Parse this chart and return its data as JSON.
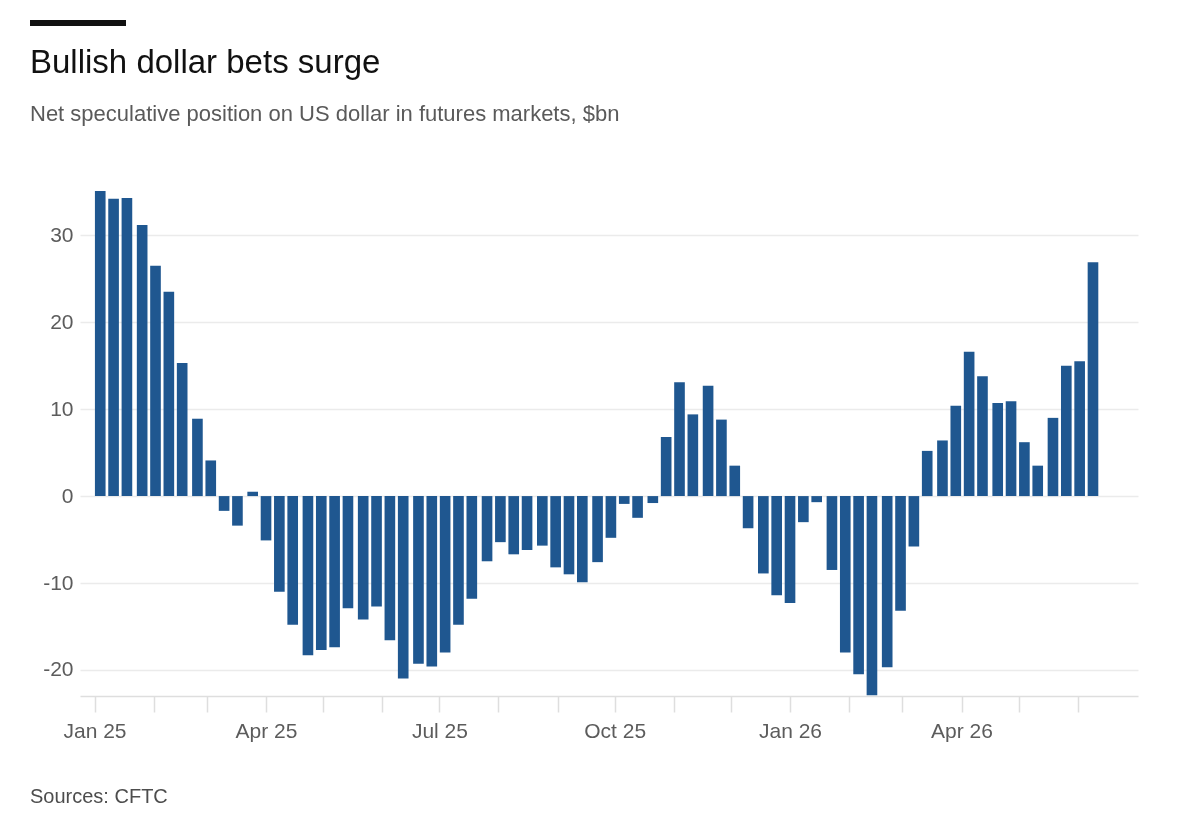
{
  "chart_data": {
    "type": "bar",
    "title": "Bullish dollar bets surge",
    "subtitle": "Net speculative position on US dollar in futures markets, $bn",
    "x": [
      "2025-01-04",
      "2025-01-11",
      "2025-01-18",
      "2025-01-26",
      "2025-02-02",
      "2025-02-09",
      "2025-02-16",
      "2025-02-24",
      "2025-03-03",
      "2025-03-10",
      "2025-03-17",
      "2025-03-25",
      "2025-04-01",
      "2025-04-08",
      "2025-04-15",
      "2025-04-23",
      "2025-04-30",
      "2025-05-07",
      "2025-05-14",
      "2025-05-22",
      "2025-05-29",
      "2025-06-05",
      "2025-06-12",
      "2025-06-20",
      "2025-06-27",
      "2025-07-04",
      "2025-07-11",
      "2025-07-18",
      "2025-07-26",
      "2025-08-02",
      "2025-08-09",
      "2025-08-16",
      "2025-08-24",
      "2025-08-31",
      "2025-09-07",
      "2025-09-14",
      "2025-09-22",
      "2025-09-29",
      "2025-10-06",
      "2025-10-13",
      "2025-10-21",
      "2025-10-28",
      "2025-11-04",
      "2025-11-11",
      "2025-11-19",
      "2025-11-26",
      "2025-12-03",
      "2025-12-10",
      "2025-12-18",
      "2025-12-25",
      "2026-01-01",
      "2026-01-08",
      "2026-01-15",
      "2026-01-23",
      "2026-01-30",
      "2026-02-06",
      "2026-02-13",
      "2026-02-21",
      "2026-02-28",
      "2026-03-07",
      "2026-03-14",
      "2026-03-22",
      "2026-03-29",
      "2026-04-05",
      "2026-04-12",
      "2026-04-20",
      "2026-04-27",
      "2026-05-04",
      "2026-05-11",
      "2026-05-19",
      "2026-05-26",
      "2026-06-02",
      "2026-06-09"
    ],
    "values": [
      35.1,
      34.2,
      34.3,
      31.2,
      26.5,
      23.5,
      15.3,
      8.9,
      4.1,
      -1.7,
      -3.4,
      0.5,
      -5.1,
      -11.0,
      -14.8,
      -18.3,
      -17.7,
      -17.4,
      -12.9,
      -14.2,
      -12.7,
      -16.6,
      -21.0,
      -19.3,
      -19.6,
      -18.0,
      -14.8,
      -11.8,
      -7.5,
      -5.3,
      -6.7,
      -6.2,
      -5.7,
      -8.2,
      -9.0,
      -9.9,
      -7.6,
      -4.8,
      -0.9,
      -2.5,
      -0.8,
      6.8,
      13.1,
      9.4,
      12.7,
      8.8,
      3.5,
      -3.7,
      -8.9,
      -11.4,
      -12.3,
      -3.0,
      -0.7,
      -8.5,
      -18.0,
      -20.5,
      -22.9,
      -19.7,
      -13.2,
      -5.8,
      5.2,
      6.4,
      10.4,
      16.6,
      13.8,
      10.7,
      10.9,
      6.2,
      3.5,
      9.0,
      15.0,
      15.5,
      26.9
    ],
    "color": "#1f5790",
    "xlim": [
      "2024-12-27",
      "2026-06-30"
    ],
    "xticks": [
      {
        "value": "2025-01-01",
        "label": "Jan 25"
      },
      {
        "value": "2025-02-01",
        "label": null
      },
      {
        "value": "2025-03-01",
        "label": null
      },
      {
        "value": "2025-04-01",
        "label": "Apr 25"
      },
      {
        "value": "2025-05-01",
        "label": null
      },
      {
        "value": "2025-06-01",
        "label": null
      },
      {
        "value": "2025-07-01",
        "label": "Jul 25"
      },
      {
        "value": "2025-08-01",
        "label": null
      },
      {
        "value": "2025-09-01",
        "label": null
      },
      {
        "value": "2025-10-01",
        "label": "Oct 25"
      },
      {
        "value": "2025-11-01",
        "label": null
      },
      {
        "value": "2025-12-01",
        "label": null
      },
      {
        "value": "2026-01-01",
        "label": "Jan 26"
      },
      {
        "value": "2026-02-01",
        "label": null
      },
      {
        "value": "2026-03-01",
        "label": null
      },
      {
        "value": "2026-04-01",
        "label": "Apr 26"
      },
      {
        "value": "2026-05-01",
        "label": null
      },
      {
        "value": "2026-06-01",
        "label": null
      }
    ],
    "ylim": [
      -23,
      35.1
    ],
    "yticks": [
      -20,
      -10,
      0,
      10,
      20,
      30
    ],
    "grid": "y",
    "annotations": [
      "Sources: CFTC"
    ]
  }
}
